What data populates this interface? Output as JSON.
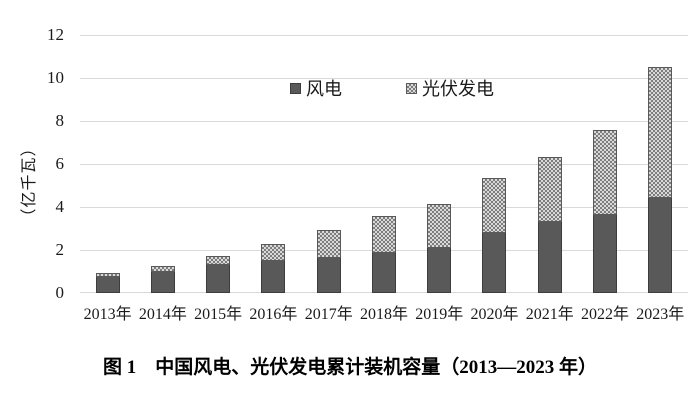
{
  "figure": {
    "caption": "图 1　中国风电、光伏发电累计装机容量（2013—2023 年）"
  },
  "legend": {
    "wind_label": "风电",
    "pv_label": "光伏发电"
  },
  "chart_data": {
    "type": "bar",
    "stacked": true,
    "title": "",
    "xlabel": "",
    "ylabel": "（亿千瓦）",
    "ylim": [
      0,
      12
    ],
    "yticks": [
      0,
      2,
      4,
      6,
      8,
      10,
      12
    ],
    "grid": true,
    "legend_position": "top-center",
    "categories": [
      "2013年",
      "2014年",
      "2015年",
      "2016年",
      "2017年",
      "2018年",
      "2019年",
      "2020年",
      "2021年",
      "2022年",
      "2023年"
    ],
    "series": [
      {
        "name": "风电",
        "pattern": "solid",
        "color": "#595959",
        "values": [
          0.76,
          0.96,
          1.29,
          1.49,
          1.64,
          1.84,
          2.1,
          2.81,
          3.28,
          3.65,
          4.41
        ]
      },
      {
        "name": "光伏发电",
        "pattern": "checker",
        "color": "#d9d9d9",
        "dot_color": "#7d7d7d",
        "values": [
          0.19,
          0.28,
          0.43,
          0.77,
          1.3,
          1.74,
          2.04,
          2.53,
          3.06,
          3.93,
          6.09
        ]
      }
    ],
    "totals": [
      0.95,
      1.24,
      1.72,
      2.26,
      2.94,
      3.58,
      4.14,
      5.34,
      6.34,
      7.58,
      10.5
    ],
    "gridline_color": "#d9d9d9"
  }
}
